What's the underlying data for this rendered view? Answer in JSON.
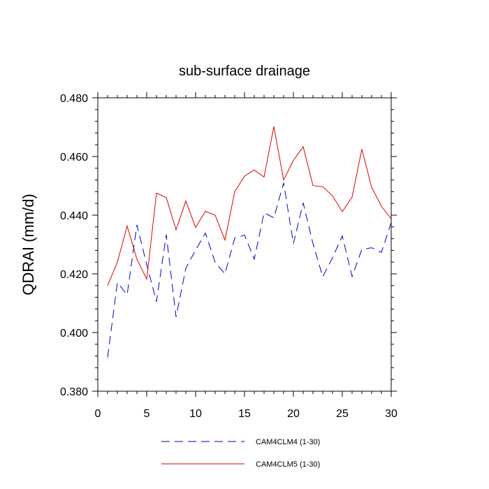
{
  "chart_data": {
    "type": "line",
    "title": "sub-surface drainage",
    "xlabel": "",
    "ylabel": "QDRAI  (mm/d)",
    "xlim": [
      0,
      30
    ],
    "ylim": [
      0.38,
      0.48
    ],
    "xticks": [
      "0",
      "5",
      "10",
      "15",
      "20",
      "25",
      "30"
    ],
    "yticks": [
      "0.380",
      "0.400",
      "0.420",
      "0.440",
      "0.460",
      "0.480"
    ],
    "grid": false,
    "legend_position": "bottom",
    "x": [
      1,
      2,
      3,
      4,
      5,
      6,
      7,
      8,
      9,
      10,
      11,
      12,
      13,
      14,
      15,
      16,
      17,
      18,
      19,
      20,
      21,
      22,
      23,
      24,
      25,
      26,
      27,
      28,
      29,
      30
    ],
    "series": [
      {
        "name": "CAM4CLM4 (1-30)",
        "color": "#0000cc",
        "dash": "dashed",
        "values": [
          0.3915,
          0.417,
          0.4129,
          0.4367,
          0.4232,
          0.4105,
          0.4334,
          0.4053,
          0.4219,
          0.4281,
          0.4339,
          0.4239,
          0.42,
          0.4322,
          0.4332,
          0.425,
          0.4408,
          0.4391,
          0.451,
          0.4303,
          0.4442,
          0.4303,
          0.419,
          0.4255,
          0.4329,
          0.4191,
          0.4283,
          0.4289,
          0.4273,
          0.4375
        ]
      },
      {
        "name": "CAM4CLM5 (1-30)",
        "color": "#e00000",
        "dash": "solid",
        "values": [
          0.416,
          0.424,
          0.4363,
          0.425,
          0.4182,
          0.4475,
          0.446,
          0.435,
          0.4448,
          0.4358,
          0.4413,
          0.44,
          0.4315,
          0.448,
          0.4533,
          0.4554,
          0.453,
          0.4702,
          0.452,
          0.4587,
          0.4633,
          0.4501,
          0.4497,
          0.4466,
          0.4412,
          0.4462,
          0.4625,
          0.4495,
          0.443,
          0.4388
        ]
      }
    ]
  }
}
